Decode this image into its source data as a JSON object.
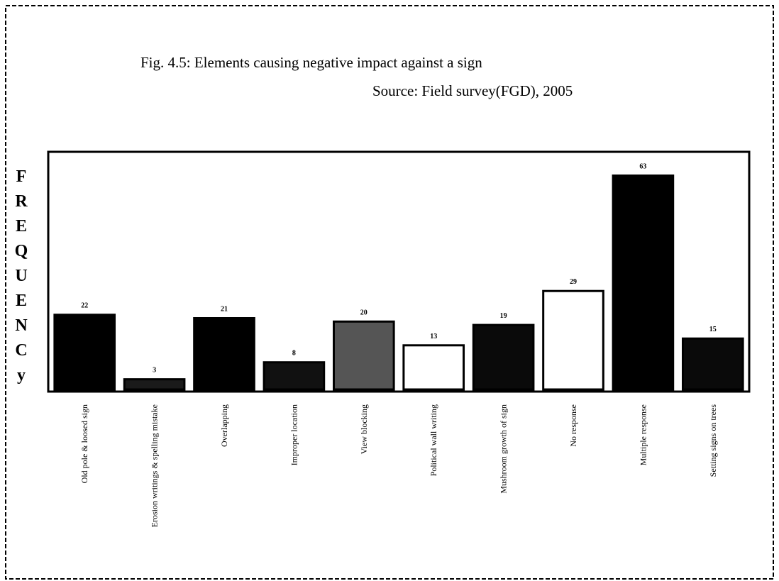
{
  "chart_data": {
    "type": "bar",
    "title": "Fig. 4.5: Elements causing negative impact against a sign",
    "subtitle": "Source: Field survey(FGD), 2005",
    "y_label": "FREQUENCy",
    "categories": [
      "Old pole & loosed sign",
      "Erosion writings & spelling mistake",
      "Overlapping",
      "Improper location",
      "View blocking",
      "Political wall writing",
      "Mushroom growth of sign",
      "No response",
      "Multiple response",
      "Setting signs on trees"
    ],
    "values": [
      22,
      3,
      21,
      8,
      20,
      13,
      19,
      29,
      63,
      15
    ],
    "colors": [
      "#000000",
      "#1a1a1a",
      "#000000",
      "#111111",
      "#555555",
      "#ffffff",
      "#0a0a0a",
      "#ffffff",
      "#000000",
      "#0a0a0a"
    ],
    "ylim": [
      0,
      70
    ]
  }
}
